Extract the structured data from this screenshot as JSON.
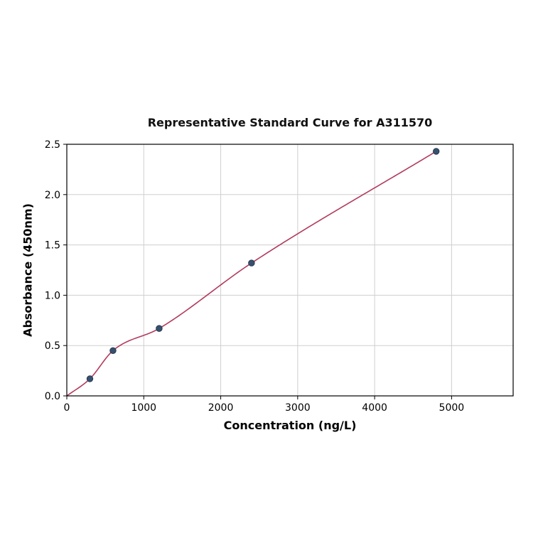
{
  "chart_data": {
    "type": "scatter",
    "title": "Representative Standard Curve for A311570",
    "xlabel": "Concentration (ng/L)",
    "ylabel": "Absorbance (450nm)",
    "x": [
      300,
      600,
      1200,
      2400,
      4800
    ],
    "y": [
      0.17,
      0.45,
      0.67,
      1.32,
      2.43
    ],
    "fit_curve": "smooth saturating curve from origin through the data points",
    "xlim": [
      0,
      5800
    ],
    "ylim": [
      0,
      2.5
    ],
    "xticks": [
      0,
      1000,
      2000,
      3000,
      4000,
      5000
    ],
    "xtick_labels": [
      "0",
      "1000",
      "2000",
      "3000",
      "4000",
      "5000"
    ],
    "yticks": [
      0.0,
      0.5,
      1.0,
      1.5,
      2.0,
      2.5
    ],
    "ytick_labels": [
      "0.0",
      "0.5",
      "1.0",
      "1.5",
      "2.0",
      "2.5"
    ],
    "grid": true,
    "legend": "none",
    "colors": {
      "marker": "#36516d",
      "marker_edge": "#1f3048",
      "curve": "#b23b5d",
      "grid": "#cfcfcf",
      "axis": "#000000",
      "background": "#ffffff"
    }
  }
}
